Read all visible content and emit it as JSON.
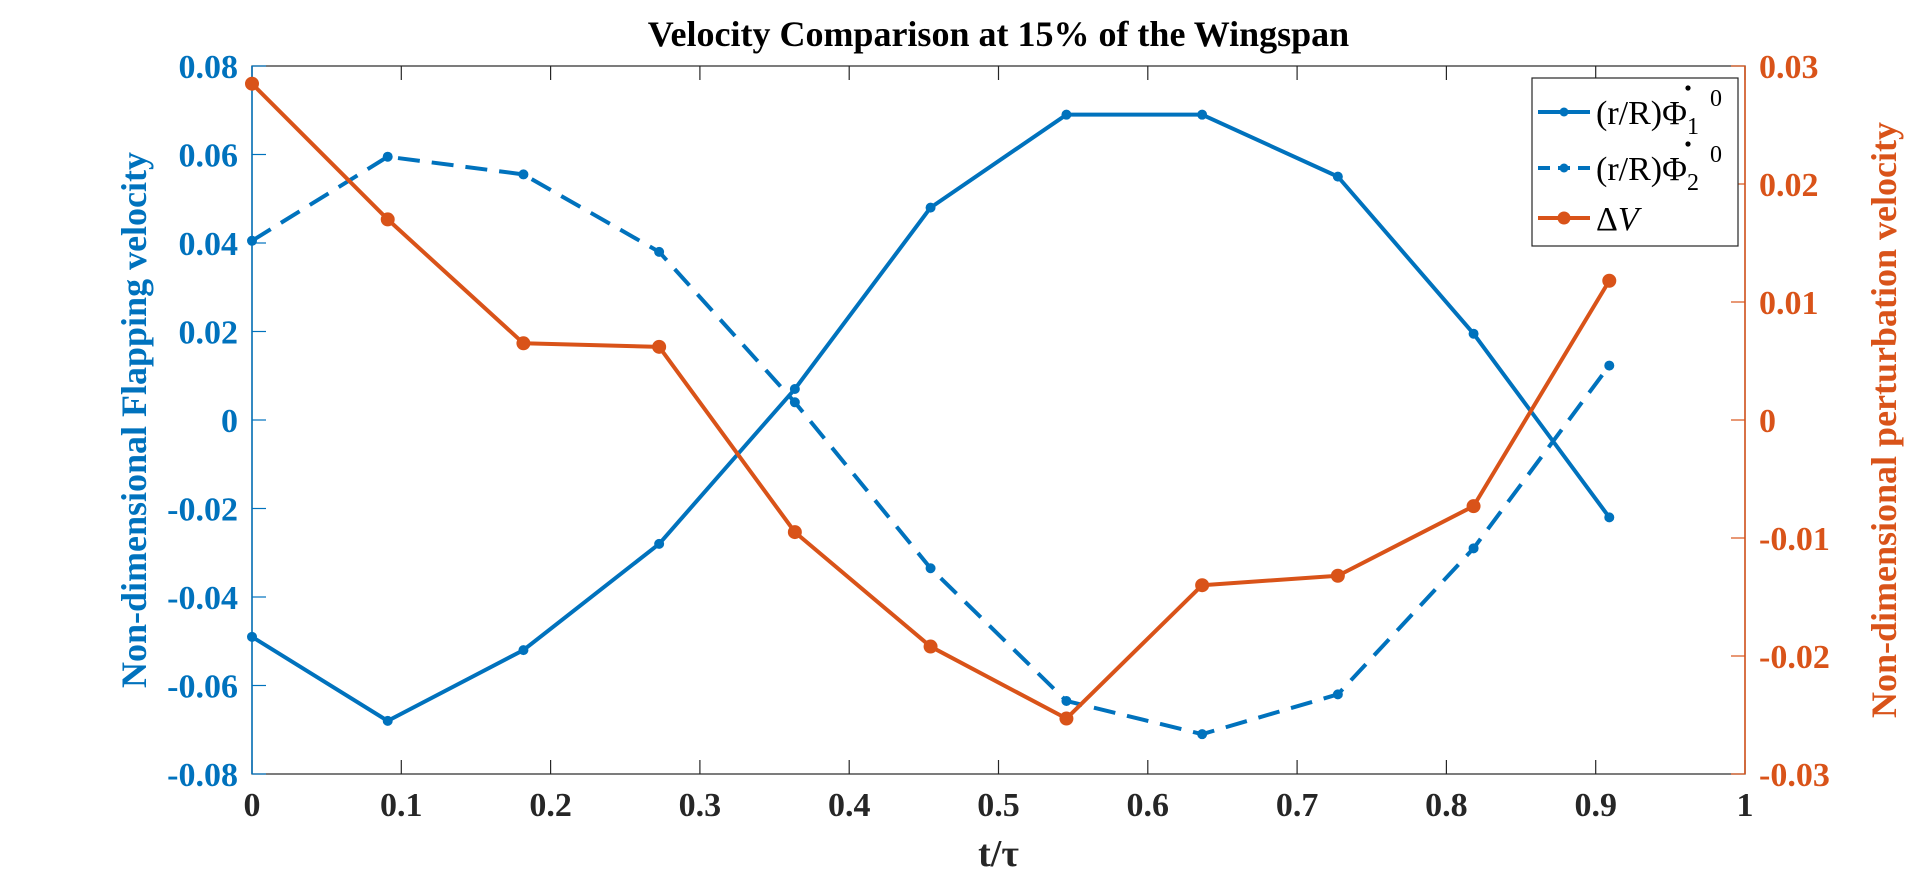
{
  "chart_data": {
    "type": "line",
    "title": "Velocity Comparison at 15% of the Wingspan",
    "xlabel": "t/τ",
    "ylabel_left": "Non-dimensional Flapping velocity",
    "ylabel_right": "Non-dimensional perturbation velocity",
    "xlim": [
      0,
      1
    ],
    "ylim_left": [
      -0.08,
      0.08
    ],
    "ylim_right": [
      -0.03,
      0.03
    ],
    "x_ticks": [
      "0",
      "0.1",
      "0.2",
      "0.3",
      "0.4",
      "0.5",
      "0.6",
      "0.7",
      "0.8",
      "0.9",
      "1"
    ],
    "y_ticks_left": [
      "0.08",
      "0.06",
      "0.04",
      "0.02",
      "0",
      "-0.02",
      "-0.04",
      "-0.06",
      "-0.08"
    ],
    "y_ticks_right": [
      "0.03",
      "0.02",
      "0.01",
      "0",
      "-0.01",
      "-0.02",
      "-0.03"
    ],
    "x": [
      0,
      0.0909,
      0.1818,
      0.2727,
      0.3636,
      0.4545,
      0.5455,
      0.6364,
      0.7273,
      0.8182,
      0.9091
    ],
    "series": [
      {
        "name": "(r/R)Φ̇₁⁰",
        "legend_base": "(r/R)Φ",
        "legend_sub": "1",
        "legend_sup": "0",
        "axis": "left",
        "style": "solid",
        "color": "#0072BD",
        "values": [
          -0.049,
          -0.068,
          -0.052,
          -0.028,
          0.007,
          0.048,
          0.069,
          0.069,
          0.055,
          0.0195,
          -0.022
        ]
      },
      {
        "name": "(r/R)Φ̇₂⁰",
        "legend_base": "(r/R)Φ",
        "legend_sub": "2",
        "legend_sup": "0",
        "axis": "left",
        "style": "dashed",
        "color": "#0072BD",
        "values": [
          0.0405,
          0.0595,
          0.0555,
          0.038,
          0.004,
          -0.0335,
          -0.0635,
          -0.071,
          -0.062,
          -0.029,
          0.0123
        ]
      },
      {
        "name": "ΔV",
        "legend_base": "Δ",
        "legend_italic": "V",
        "axis": "right",
        "style": "solid",
        "color": "#D95319",
        "values": [
          0.0285,
          0.017,
          0.0065,
          0.0062,
          -0.0095,
          -0.0192,
          -0.0253,
          -0.014,
          -0.0132,
          -0.0073,
          0.0118
        ]
      }
    ],
    "legend_position": "top-right"
  }
}
